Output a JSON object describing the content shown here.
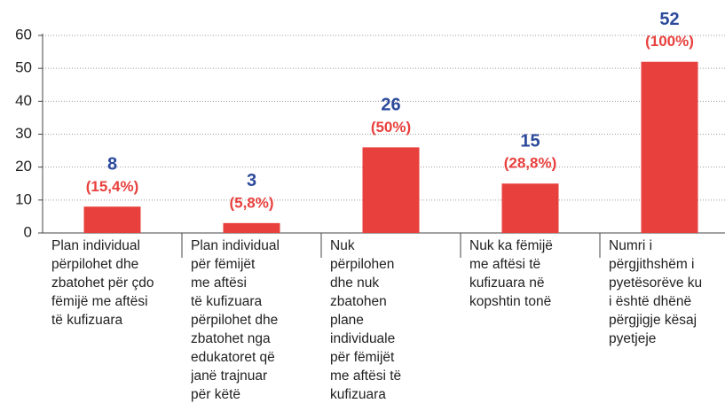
{
  "chart_data": {
    "type": "bar",
    "categories": [
      "Plan individual\npërpilohet dhe\nzbatohet për çdo\nfëmijë me aftësi\ntë kufizuara",
      "Plan individual\npër fëmijët\nme aftësi\ntë kufizuara\npërpilohet dhe\nzbatohet nga\nedukatoret që\njanë trajnuar\npër këtë",
      "Nuk\npërpilohen\ndhe nuk\nzbatohen\nplane\nindividuale\npër fëmijët\nme aftësi të\nkufizuara",
      "Nuk ka fëmijë\nme aftësi të\nkufizuara në\nkopshtin tonë",
      "Numri i\npërgjithshëm i\npyetësorëve ku\ni është dhënë\npërgjigje kësaj\npyetjeje"
    ],
    "values": [
      8,
      3,
      26,
      15,
      52
    ],
    "percent_labels": [
      "(15,4%)",
      "(5,8%)",
      "(50%)",
      "(28,8%)",
      "(100%)"
    ],
    "color": "#e8403d",
    "value_label_color": "#2b4a9b",
    "percent_label_color": "#e8403d",
    "ylim": [
      0,
      60
    ],
    "yticks": [
      0,
      10,
      20,
      30,
      40,
      50,
      60
    ],
    "grid": true
  }
}
